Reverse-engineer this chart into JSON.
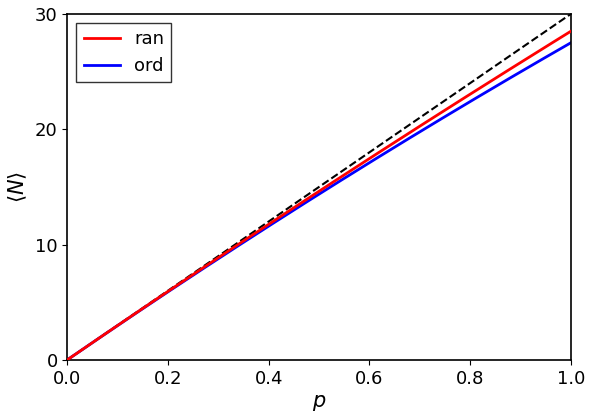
{
  "N": 30,
  "xlabel": "$p$",
  "ylabel": "$\\langle N \\rangle$",
  "xlim": [
    0,
    1
  ],
  "ylim": [
    0,
    30
  ],
  "xticks": [
    0,
    0.2,
    0.4,
    0.6,
    0.8,
    1.0
  ],
  "yticks": [
    0,
    10,
    20,
    30
  ],
  "ran_color": "#ff0000",
  "ord_color": "#0000ff",
  "ref_color": "#000000",
  "ran_label": "ran",
  "ord_label": "ord",
  "ran_scale": 60,
  "ord_scale": 22,
  "ref_slope": 30,
  "linewidth": 2.0,
  "ref_linewidth": 1.5,
  "legend_fontsize": 13,
  "axis_fontsize": 15,
  "tick_fontsize": 13
}
